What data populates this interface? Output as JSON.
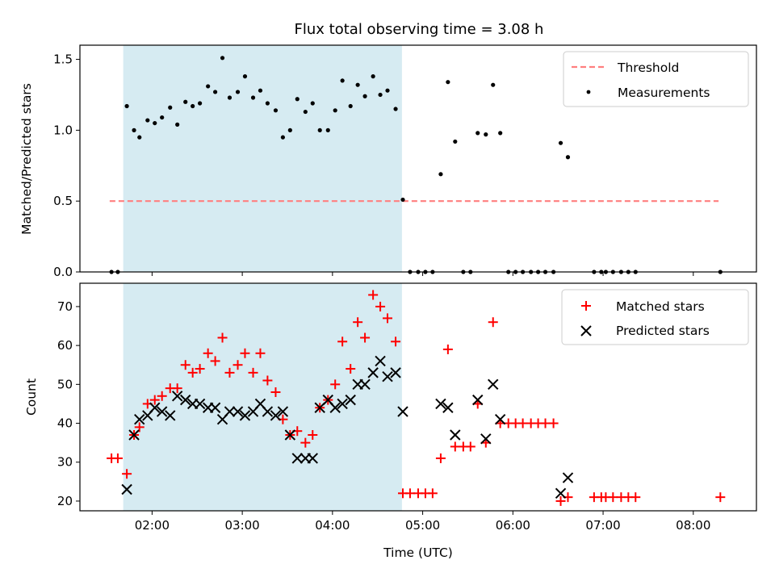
{
  "chart_data": {
    "type": "scatter",
    "title": "Flux total observing time = 3.08 h",
    "xlabel": "Time (UTC)",
    "x_ticks": [
      "02:00",
      "03:00",
      "04:00",
      "05:00",
      "06:00",
      "07:00",
      "08:00"
    ],
    "xlim_hours": [
      1.2,
      8.7
    ],
    "shaded_interval_hours": [
      1.68,
      4.77
    ],
    "colors": {
      "shade": "#add8e6",
      "threshold": "#ff7f7f",
      "measurements": "#000000",
      "matched": "#ff0000",
      "predicted": "#000000"
    },
    "panels": [
      {
        "ylabel": "Matched/Predicted stars",
        "ylim": [
          0.0,
          1.6
        ],
        "y_ticks": [
          "0.0",
          "0.5",
          "1.0",
          "1.5"
        ],
        "legend_position": "upper right",
        "threshold": {
          "name": "Threshold",
          "value": 0.5,
          "x_range_hours": [
            1.53,
            8.28
          ]
        },
        "series": [
          {
            "name": "Measurements",
            "marker": "dot",
            "points": [
              [
                1.55,
                0
              ],
              [
                1.62,
                0
              ],
              [
                1.72,
                1.17
              ],
              [
                1.8,
                1.0
              ],
              [
                1.86,
                0.95
              ],
              [
                1.95,
                1.07
              ],
              [
                2.03,
                1.05
              ],
              [
                2.11,
                1.09
              ],
              [
                2.2,
                1.16
              ],
              [
                2.28,
                1.04
              ],
              [
                2.37,
                1.2
              ],
              [
                2.45,
                1.17
              ],
              [
                2.53,
                1.19
              ],
              [
                2.62,
                1.31
              ],
              [
                2.7,
                1.27
              ],
              [
                2.78,
                1.51
              ],
              [
                2.86,
                1.23
              ],
              [
                2.95,
                1.27
              ],
              [
                3.03,
                1.38
              ],
              [
                3.12,
                1.23
              ],
              [
                3.2,
                1.28
              ],
              [
                3.28,
                1.19
              ],
              [
                3.37,
                1.14
              ],
              [
                3.45,
                0.95
              ],
              [
                3.53,
                1.0
              ],
              [
                3.61,
                1.22
              ],
              [
                3.7,
                1.13
              ],
              [
                3.78,
                1.19
              ],
              [
                3.86,
                1.0
              ],
              [
                3.95,
                1.0
              ],
              [
                4.03,
                1.14
              ],
              [
                4.11,
                1.35
              ],
              [
                4.2,
                1.17
              ],
              [
                4.28,
                1.32
              ],
              [
                4.36,
                1.24
              ],
              [
                4.45,
                1.38
              ],
              [
                4.53,
                1.25
              ],
              [
                4.61,
                1.28
              ],
              [
                4.7,
                1.15
              ],
              [
                4.78,
                0.51
              ],
              [
                4.86,
                0
              ],
              [
                4.95,
                0
              ],
              [
                5.03,
                0
              ],
              [
                5.11,
                0
              ],
              [
                5.2,
                0.69
              ],
              [
                5.28,
                1.34
              ],
              [
                5.36,
                0.92
              ],
              [
                5.45,
                0
              ],
              [
                5.53,
                0
              ],
              [
                5.61,
                0.98
              ],
              [
                5.7,
                0.97
              ],
              [
                5.78,
                1.32
              ],
              [
                5.86,
                0.98
              ],
              [
                5.95,
                0
              ],
              [
                6.03,
                0
              ],
              [
                6.11,
                0
              ],
              [
                6.2,
                0
              ],
              [
                6.28,
                0
              ],
              [
                6.36,
                0
              ],
              [
                6.45,
                0
              ],
              [
                6.53,
                0.91
              ],
              [
                6.61,
                0.81
              ],
              [
                6.9,
                0
              ],
              [
                6.98,
                0
              ],
              [
                7.03,
                0
              ],
              [
                7.11,
                0
              ],
              [
                7.2,
                0
              ],
              [
                7.28,
                0
              ],
              [
                7.36,
                0
              ],
              [
                8.3,
                0
              ]
            ]
          }
        ]
      },
      {
        "ylabel": "Count",
        "ylim": [
          17.5,
          76
        ],
        "y_ticks": [
          "20",
          "30",
          "40",
          "50",
          "60",
          "70"
        ],
        "legend_position": "upper right",
        "series": [
          {
            "name": "Matched stars",
            "marker": "plus",
            "points": [
              [
                1.55,
                31
              ],
              [
                1.62,
                31
              ],
              [
                1.72,
                27
              ],
              [
                1.8,
                37
              ],
              [
                1.86,
                39
              ],
              [
                1.95,
                45
              ],
              [
                2.03,
                46
              ],
              [
                2.11,
                47
              ],
              [
                2.2,
                49
              ],
              [
                2.28,
                49
              ],
              [
                2.37,
                55
              ],
              [
                2.45,
                53
              ],
              [
                2.53,
                54
              ],
              [
                2.62,
                58
              ],
              [
                2.7,
                56
              ],
              [
                2.78,
                62
              ],
              [
                2.86,
                53
              ],
              [
                2.95,
                55
              ],
              [
                3.03,
                58
              ],
              [
                3.12,
                53
              ],
              [
                3.2,
                58
              ],
              [
                3.28,
                51
              ],
              [
                3.37,
                48
              ],
              [
                3.45,
                41
              ],
              [
                3.53,
                37
              ],
              [
                3.61,
                38
              ],
              [
                3.7,
                35
              ],
              [
                3.78,
                37
              ],
              [
                3.86,
                44
              ],
              [
                3.95,
                46
              ],
              [
                4.03,
                50
              ],
              [
                4.11,
                61
              ],
              [
                4.2,
                54
              ],
              [
                4.28,
                66
              ],
              [
                4.36,
                62
              ],
              [
                4.45,
                73
              ],
              [
                4.53,
                70
              ],
              [
                4.61,
                67
              ],
              [
                4.7,
                61
              ],
              [
                4.78,
                22
              ],
              [
                4.86,
                22
              ],
              [
                4.95,
                22
              ],
              [
                5.03,
                22
              ],
              [
                5.11,
                22
              ],
              [
                5.2,
                31
              ],
              [
                5.28,
                59
              ],
              [
                5.36,
                34
              ],
              [
                5.45,
                34
              ],
              [
                5.53,
                34
              ],
              [
                5.61,
                45
              ],
              [
                5.7,
                35
              ],
              [
                5.78,
                66
              ],
              [
                5.86,
                40
              ],
              [
                5.95,
                40
              ],
              [
                6.03,
                40
              ],
              [
                6.11,
                40
              ],
              [
                6.2,
                40
              ],
              [
                6.28,
                40
              ],
              [
                6.36,
                40
              ],
              [
                6.45,
                40
              ],
              [
                6.53,
                20
              ],
              [
                6.61,
                21
              ],
              [
                6.9,
                21
              ],
              [
                6.98,
                21
              ],
              [
                7.03,
                21
              ],
              [
                7.11,
                21
              ],
              [
                7.2,
                21
              ],
              [
                7.28,
                21
              ],
              [
                7.36,
                21
              ],
              [
                8.3,
                21
              ]
            ]
          },
          {
            "name": "Predicted stars",
            "marker": "x",
            "points": [
              [
                1.72,
                23
              ],
              [
                1.8,
                37
              ],
              [
                1.86,
                41
              ],
              [
                1.95,
                42
              ],
              [
                2.03,
                44
              ],
              [
                2.11,
                43
              ],
              [
                2.2,
                42
              ],
              [
                2.28,
                47
              ],
              [
                2.37,
                46
              ],
              [
                2.45,
                45
              ],
              [
                2.53,
                45
              ],
              [
                2.62,
                44
              ],
              [
                2.7,
                44
              ],
              [
                2.78,
                41
              ],
              [
                2.86,
                43
              ],
              [
                2.95,
                43
              ],
              [
                3.03,
                42
              ],
              [
                3.12,
                43
              ],
              [
                3.2,
                45
              ],
              [
                3.28,
                43
              ],
              [
                3.37,
                42
              ],
              [
                3.45,
                43
              ],
              [
                3.53,
                37
              ],
              [
                3.61,
                31
              ],
              [
                3.7,
                31
              ],
              [
                3.78,
                31
              ],
              [
                3.86,
                44
              ],
              [
                3.95,
                46
              ],
              [
                4.03,
                44
              ],
              [
                4.11,
                45
              ],
              [
                4.2,
                46
              ],
              [
                4.28,
                50
              ],
              [
                4.36,
                50
              ],
              [
                4.45,
                53
              ],
              [
                4.53,
                56
              ],
              [
                4.61,
                52
              ],
              [
                4.7,
                53
              ],
              [
                4.78,
                43
              ],
              [
                5.2,
                45
              ],
              [
                5.28,
                44
              ],
              [
                5.36,
                37
              ],
              [
                5.61,
                46
              ],
              [
                5.7,
                36
              ],
              [
                5.78,
                50
              ],
              [
                5.86,
                41
              ],
              [
                6.53,
                22
              ],
              [
                6.61,
                26
              ]
            ]
          }
        ]
      }
    ]
  }
}
